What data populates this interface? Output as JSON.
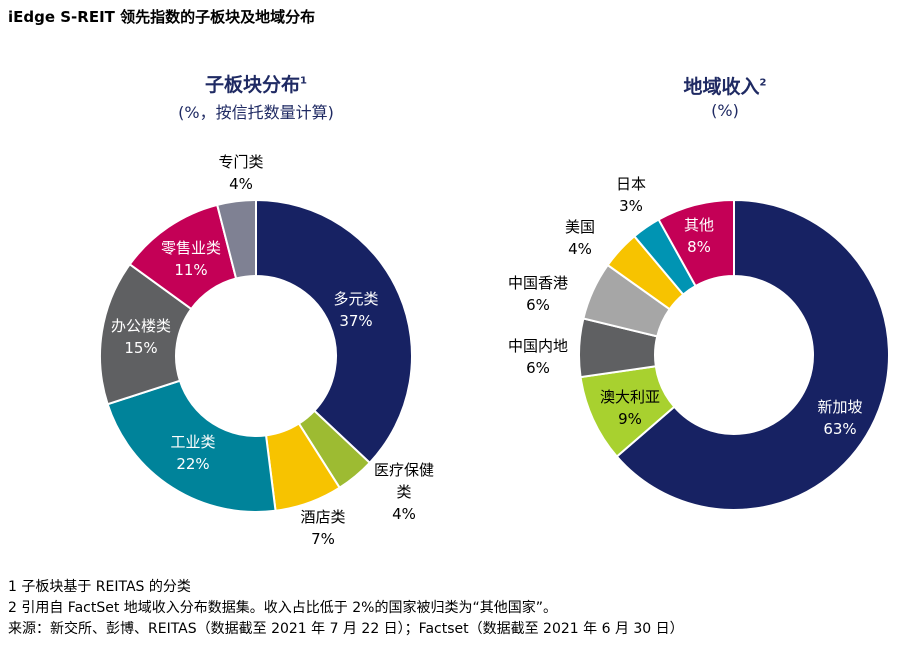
{
  "page": {
    "title": "iEdge S-REIT 领先指数的子板块及地域分布"
  },
  "chart_data": [
    {
      "type": "pie",
      "title": "子板块分布",
      "title_note": "1",
      "subtitle": "(%，按信托数量计算)",
      "slices": [
        {
          "label": "多元类",
          "value": 37,
          "value_label": "37%",
          "color": "#172263",
          "label_color": "#ffffff"
        },
        {
          "label": "医疗保健类",
          "value": 4,
          "value_label": "4%",
          "color": "#9dbb32",
          "label_color": "#000000"
        },
        {
          "label": "酒店类",
          "value": 7,
          "value_label": "7%",
          "color": "#f7c300",
          "label_color": "#000000"
        },
        {
          "label": "工业类",
          "value": 22,
          "value_label": "22%",
          "color": "#00839a",
          "label_color": "#ffffff"
        },
        {
          "label": "办公楼类",
          "value": 15,
          "value_label": "15%",
          "color": "#5f6062",
          "label_color": "#ffffff"
        },
        {
          "label": "零售业类",
          "value": 11,
          "value_label": "11%",
          "color": "#c40056",
          "label_color": "#ffffff"
        },
        {
          "label": "专门类",
          "value": 4,
          "value_label": "4%",
          "color": "#7f8193",
          "label_color": "#000000"
        }
      ]
    },
    {
      "type": "pie",
      "title": "地域收入",
      "title_note": "2",
      "subtitle": "(%)",
      "slices": [
        {
          "label": "新加坡",
          "value": 63,
          "value_label": "63%",
          "color": "#172263",
          "label_color": "#ffffff"
        },
        {
          "label": "澳大利亚",
          "value": 9,
          "value_label": "9%",
          "color": "#a8d12f",
          "label_color": "#000000"
        },
        {
          "label": "中国内地",
          "value": 6,
          "value_label": "6%",
          "color": "#5f6062",
          "label_color": "#000000"
        },
        {
          "label": "中国香港",
          "value": 6,
          "value_label": "6%",
          "color": "#a6a6a6",
          "label_color": "#000000"
        },
        {
          "label": "美国",
          "value": 4,
          "value_label": "4%",
          "color": "#f7c300",
          "label_color": "#000000"
        },
        {
          "label": "日本",
          "value": 3,
          "value_label": "3%",
          "color": "#0094b3",
          "label_color": "#000000"
        },
        {
          "label": "其他",
          "value": 8,
          "value_label": "8%",
          "color": "#c40056",
          "label_color": "#ffffff"
        }
      ]
    }
  ],
  "footnotes": [
    "1 子板块基于 REITAS 的分类",
    "2 引用自 FactSet 地域收入分布数据集。收入占比低于 2%的国家被归类为“其他国家”。",
    "来源：新交所、彭博、REITAS（数据截至 2021 年 7 月 22 日）；Factset（数据截至 2021 年 6 月 30 日）"
  ]
}
